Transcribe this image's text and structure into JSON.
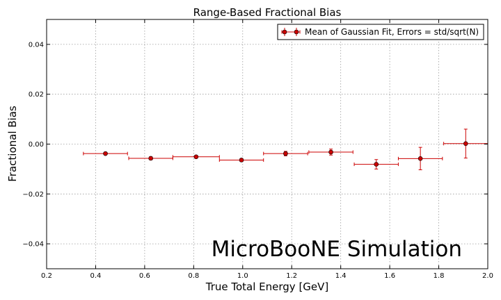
{
  "chart_data": {
    "type": "scatter",
    "title": "Range-Based Fractional Bias",
    "xlabel": "True Total Energy [GeV]",
    "ylabel": "Fractional Bias",
    "xlim": [
      0.2,
      2.0
    ],
    "ylim": [
      -0.05,
      0.05
    ],
    "xticks": [
      0.2,
      0.4,
      0.6,
      0.8,
      1.0,
      1.2,
      1.4,
      1.6,
      1.8,
      2.0
    ],
    "yticks": [
      -0.04,
      -0.02,
      0.0,
      0.02,
      0.04
    ],
    "xtick_labels": [
      "0.2",
      "0.4",
      "0.6",
      "0.8",
      "1.0",
      "1.2",
      "1.4",
      "1.6",
      "1.8",
      "2.0"
    ],
    "ytick_labels": [
      "−0.04",
      "−0.02",
      "0.00",
      "0.02",
      "0.04"
    ],
    "grid": true,
    "legend": "top-right",
    "annotation": "MicroBooNE Simulation",
    "color": "#cc0000",
    "series": [
      {
        "name": "Mean of Gaussian Fit, Errors = std/sqrt(N)",
        "x": [
          0.44,
          0.625,
          0.81,
          0.995,
          1.175,
          1.36,
          1.545,
          1.725,
          1.91
        ],
        "xerr": [
          0.09,
          0.09,
          0.095,
          0.09,
          0.09,
          0.09,
          0.09,
          0.09,
          0.09
        ],
        "y": [
          -0.0038,
          -0.0057,
          -0.0051,
          -0.0064,
          -0.0038,
          -0.0032,
          -0.0081,
          -0.0058,
          0.0002
        ],
        "yerr": [
          0.0005,
          0.0006,
          0.0005,
          0.0006,
          0.0009,
          0.0012,
          0.0019,
          0.0045,
          0.0058
        ]
      }
    ]
  }
}
